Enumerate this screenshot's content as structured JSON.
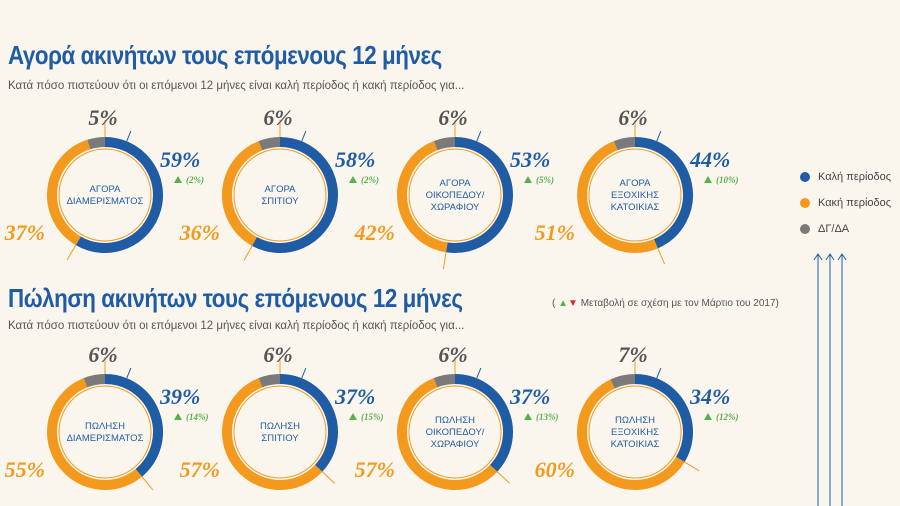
{
  "section_buy": {
    "title": "Αγορά ακινήτων τους επόμενους 12 μήνες",
    "subtitle": "Κατά πόσο πιστεύουν ότι οι επόμενοι 12 μήνες είναι καλή περίοδος ή κακή περίοδος για..."
  },
  "section_sell": {
    "title": "Πώληση ακινήτων τους επόμενους 12 μήνες",
    "subtitle": "Κατά πόσο πιστεύουν ότι οι επόμενοι 12 μήνες είναι καλή περίοδος ή κακή περίοδος για..."
  },
  "change_note": {
    "open": "(",
    "text": "Μεταβολή σε σχέση με τον Μάρτιο του 2017)"
  },
  "legend": [
    {
      "label": "Καλή περίοδος",
      "color": "#1f5ca4"
    },
    {
      "label": "Κακή περίοδος",
      "color": "#f39a1e"
    },
    {
      "label": "ΔΓ/ΔΑ",
      "color": "#7a7a7a"
    }
  ],
  "colors": {
    "good": "#1f5ca4",
    "bad": "#f39a1e",
    "dk": "#7a7a7a",
    "change_up": "#56b04c",
    "change_down": "#d42b2b"
  },
  "chart_data": [
    {
      "type": "pie",
      "title": "Αγορά ακινήτων τους επόμενους 12 μήνες",
      "series": [
        {
          "name": "ΑΓΟΡΑ ΔΙΑΜΕΡΙΣΜΑΤΟΣ",
          "label_lines": [
            "ΑΓΟΡΑ",
            "ΔΙΑΜΕΡΙΣΜΑΤΟΣ"
          ],
          "good": 59,
          "bad": 37,
          "dk": 5,
          "change": "(2%)",
          "good_label": "59%",
          "bad_label": "37%",
          "dk_label": "5%"
        },
        {
          "name": "ΑΓΟΡΑ ΣΠΙΤΙΟΥ",
          "label_lines": [
            "ΑΓΟΡΑ",
            "ΣΠΙΤΙΟΥ"
          ],
          "good": 58,
          "bad": 36,
          "dk": 6,
          "change": "(2%)",
          "good_label": "58%",
          "bad_label": "36%",
          "dk_label": "6%"
        },
        {
          "name": "ΑΓΟΡΑ ΟΙΚΟΠΕΔΟΥ/ ΧΩΡΑΦΙΟΥ",
          "label_lines": [
            "ΑΓΟΡΑ",
            "ΟΙΚΟΠΕΔΟΥ/",
            "ΧΩΡΑΦΙΟΥ"
          ],
          "good": 53,
          "bad": 42,
          "dk": 6,
          "change": "(5%)",
          "good_label": "53%",
          "bad_label": "42%",
          "dk_label": "6%"
        },
        {
          "name": "ΑΓΟΡΑ ΕΞΟΧΙΚΗΣ ΚΑΤΟΙΚΙΑΣ",
          "label_lines": [
            "ΑΓΟΡΑ",
            "ΕΞΟΧΙΚΗΣ",
            "ΚΑΤΟΙΚΙΑΣ"
          ],
          "good": 44,
          "bad": 51,
          "dk": 6,
          "change": "(10%)",
          "good_label": "44%",
          "bad_label": "51%",
          "dk_label": "6%"
        }
      ]
    },
    {
      "type": "pie",
      "title": "Πώληση ακινήτων τους επόμενους 12 μήνες",
      "series": [
        {
          "name": "ΠΩΛΗΣΗ ΔΙΑΜΕΡΙΣΜΑΤΟΣ",
          "label_lines": [
            "ΠΩΛΗΣΗ",
            "ΔΙΑΜΕΡΙΣΜΑΤΟΣ"
          ],
          "good": 39,
          "bad": 55,
          "dk": 6,
          "change": "(14%)",
          "good_label": "39%",
          "bad_label": "55%",
          "dk_label": "6%"
        },
        {
          "name": "ΠΩΛΗΣΗ ΣΠΙΤΙΟΥ",
          "label_lines": [
            "ΠΩΛΗΣΗ",
            "ΣΠΙΤΙΟΥ"
          ],
          "good": 37,
          "bad": 57,
          "dk": 6,
          "change": "(15%)",
          "good_label": "37%",
          "bad_label": "57%",
          "dk_label": "6%"
        },
        {
          "name": "ΠΩΛΗΣΗ ΟΙΚΟΠΕΔΟΥ/ ΧΩΡΑΦΙΟΥ",
          "label_lines": [
            "ΠΩΛΗΣΗ",
            "ΟΙΚΟΠΕΔΟΥ/",
            "ΧΩΡΑΦΙΟΥ"
          ],
          "good": 37,
          "bad": 57,
          "dk": 6,
          "change": "(13%)",
          "good_label": "37%",
          "bad_label": "57%",
          "dk_label": "6%"
        },
        {
          "name": "ΠΩΛΗΣΗ ΕΞΟΧΙΚΗΣ ΚΑΤΟΙΚΙΑΣ",
          "label_lines": [
            "ΠΩΛΗΣΗ",
            "ΕΞΟΧΙΚΗΣ",
            "ΚΑΤΟΙΚΙΑΣ"
          ],
          "good": 34,
          "bad": 60,
          "dk": 7,
          "change": "(12%)",
          "good_label": "34%",
          "bad_label": "60%",
          "dk_label": "7%"
        }
      ]
    }
  ]
}
